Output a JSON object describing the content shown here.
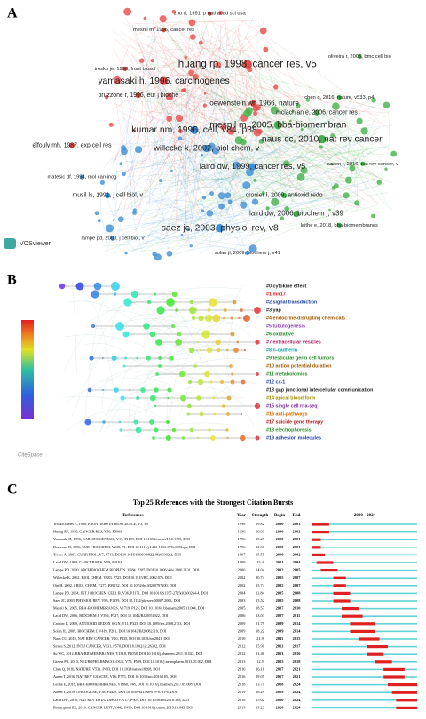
{
  "panel_a": {
    "label": "A",
    "logo": "VOSviewer",
    "nodes": [
      {
        "label": "zhu d, 1991, p natl acad sci usa",
        "color": "#e84a47"
      },
      {
        "label": "mesnil m, 1996, cancer res",
        "color": "#e84a47"
      },
      {
        "label": "huang rp, 1998, cancer res, v5",
        "color": "#e84a47"
      },
      {
        "label": "yamasaki h, 1996, carcinogenes",
        "color": "#e84a47"
      },
      {
        "label": "bruzzone r, 1996, eur j bioche",
        "color": "#e84a47"
      },
      {
        "label": "loewenstein wr, 1966, nature",
        "color": "#e84a47"
      },
      {
        "label": "kumar nm, 1996, cell, v84, p38",
        "color": "#3f8fd6"
      },
      {
        "label": "mesnil m, 2005, bba-biomembran",
        "color": "#43b24a"
      },
      {
        "label": "naus cc, 2010, nat rev cancer",
        "color": "#43b24a"
      },
      {
        "label": "willecke k, 2002, biol chem, v",
        "color": "#3f8fd6"
      },
      {
        "label": "laird dw, 1999, cancer res, v5",
        "color": "#3f8fd6"
      },
      {
        "label": "saez jc, 2003, physiol rev, v8",
        "color": "#3f8fd6"
      },
      {
        "label": "laird dw, 2006, biochem j, v39",
        "color": "#43b24a"
      },
      {
        "label": "elfouly mh, 1987, exp cell res",
        "color": "#e84a47"
      },
      {
        "label": "musil ls, 1991, j cell biol, v",
        "color": "#3f8fd6"
      },
      {
        "label": "lampe pd, 2000, j cell biol, v",
        "color": "#3f8fd6"
      },
      {
        "label": "solan jl, 2009, biochem j, v41",
        "color": "#3f8fd6"
      },
      {
        "label": "cronier l, 2009, antioxid redo",
        "color": "#43b24a"
      },
      {
        "label": "chen q, 2016, nature, v533, p4",
        "color": "#43b24a"
      },
      {
        "label": "oliveira r, 2005, bmc cell bio",
        "color": "#43b24a"
      },
      {
        "label": "mclachlan e, 2006, cancer res",
        "color": "#43b24a"
      },
      {
        "label": "aasen t, 2016, nat rev cancer, v",
        "color": "#43b24a"
      },
      {
        "label": "leithe e, 2018, bba-biomembranes",
        "color": "#43b24a"
      },
      {
        "label": "trosko je, 1998, front biosci",
        "color": "#e84a47"
      },
      {
        "label": "matesic df, 1994, mol carcinog",
        "color": "#3f8fd6"
      }
    ]
  },
  "panel_b": {
    "label": "B",
    "logo": "CiteSpace",
    "clusters": [
      {
        "label": "#0 cytokine effect",
        "color": "#222222"
      },
      {
        "label": "#1 mir17",
        "color": "#d42020"
      },
      {
        "label": "#2 signal transduction",
        "color": "#1f3f9f"
      },
      {
        "label": "#3 yap",
        "color": "#222222"
      },
      {
        "label": "#4 endocrine-disrupting chemicals",
        "color": "#a05a00"
      },
      {
        "label": "#5 tubulogenesis",
        "color": "#8a3fb0"
      },
      {
        "label": "#6 oxidative",
        "color": "#2b8a2b"
      },
      {
        "label": "#7 extracellular vesicles",
        "color": "#b0206a"
      },
      {
        "label": "#8 n-cadherin",
        "color": "#20a0a0"
      },
      {
        "label": "#9 testicular germ cell tumors",
        "color": "#2b8a2b"
      },
      {
        "label": "#10 action potential duration",
        "color": "#a05a00"
      },
      {
        "label": "#11 metabolomics",
        "color": "#2b8a2b"
      },
      {
        "label": "#12 cx-1",
        "color": "#1f3f9f"
      },
      {
        "label": "#13 gap junctional intercellular communication",
        "color": "#222222"
      },
      {
        "label": "#14 apical blood form",
        "color": "#a09000"
      },
      {
        "label": "#15 single cell rna-seq",
        "color": "#7a2aa0"
      },
      {
        "label": "#16 anti-pathways",
        "color": "#d46a00"
      },
      {
        "label": "#17 suicide gene therapy",
        "color": "#b02020"
      },
      {
        "label": "#18 electrophoresis",
        "color": "#2b8a2b"
      },
      {
        "label": "#19 adhesion molecules",
        "color": "#1f3f9f"
      }
    ]
  },
  "panel_c": {
    "label": "C",
    "title": "Top 25 References with the Strongest Citation Bursts",
    "headers": [
      "References",
      "Year",
      "Strength",
      "Begin",
      "End",
      "2000 - 2024"
    ],
    "xlim": [
      2000,
      2024
    ],
    "rows": [
      [
        "Trosko James E, 1998, FRONTIERS IN BIOSCIENCE, V3, P9",
        1998,
        19.82,
        2000,
        2003
      ],
      [
        "Huang RP, 1998, CANCER RES, V58, P5089",
        1998,
        16.83,
        2000,
        2003
      ],
      [
        "Yamasaki H, 1996, CARCINOGENESIS, V17, P1199, DOI 10.1093/carcin/17.6.1199, DOI",
        1996,
        18.27,
        2000,
        2001
      ],
      [
        "Bruzzone R, 1996, EUR J BIOCHEM, V238, P1, DOI 10.1111/j.1432-1033.1996.0001q.x, DOI",
        1996,
        12.56,
        2000,
        2001
      ],
      [
        "Trosse A, 1997, CURR BIOL, V7, P713, DOI 10.1016/S0960-9822(06)00302-2, DOI",
        1997,
        15.55,
        2000,
        2002
      ],
      [
        "Laird DW, 1999, CANCER RES, V59, P4104",
        1999,
        15.4,
        2001,
        2004
      ],
      [
        "Lampe PD, 2000, ARCH BIOCHEM BIOPHYS, V384, P205, DOI 10.1006/abbi.2000.2131, DOI",
        2000,
        14.04,
        2002,
        2005
      ],
      [
        "Willecke K, 2002, BIOL CHEM, V383, P725, DOI 10.1515/BC.2002.076, DOI",
        2002,
        20.74,
        2005,
        2007
      ],
      [
        "Qin H, 2002, J BIOL CHEM, V277, P29132, DOI 10.1074/jbc.M200797200, DOI",
        2002,
        15.74,
        2005,
        2007
      ],
      [
        "Lampe PD, 2004, INT J BIOCHEM CELL B, V36, P1171, DOI 10.1016/S1357-2725(03)00264-4, DOI",
        2004,
        13.84,
        2005,
        2008
      ],
      [
        "Saez JC, 2003, PHYSIOL REV, V83, P1359, DOI 10.1152/physrev.00007.2003, DOI",
        2003,
        15.52,
        2005,
        2008
      ],
      [
        "Mesnil M, 2005, BBA-BIOMEMBRANES, V1719, P125, DOI 10.1016/j.bbamem.2005.11.004, DOI",
        2005,
        18.57,
        2007,
        2010
      ],
      [
        "Laird DW, 2006, BIOCHEM J, V394, P527, DOI 10.1042/BJ20051922, DOI",
        2006,
        13.03,
        2007,
        2011
      ],
      [
        "Cronier L, 2009, ANTIOXID REDOX SIGN, V11, P323, DOI 10.1089/ars.2008.2153, DOI",
        2009,
        21.79,
        2009,
        2014
      ],
      [
        "Solan JL, 2009, BIOCHEM J, V419, P261, DOI 10.1042/BJ20082319, DOI",
        2009,
        18.22,
        2009,
        2014
      ],
      [
        "Naus CC, 2010, NAT REV CANCER, V10, P435, DOI 10.1038/nrc2841, DOI",
        2010,
        21.9,
        2011,
        2015
      ],
      [
        "Sirnes S, 2012, INT J CANCER, V131, P570, DOI 10.1002/ijc.26392, DOI",
        2012,
        15.91,
        2013,
        2017
      ],
      [
        "Su WC, 2012, BBA-BIOMEMBRANES, V1818, P2058, DOI 10.1016/j.bbamem.2011.10.022, DOI",
        2012,
        11.48,
        2013,
        2016
      ],
      [
        "Gielen PR, 2013, NEUROPHARMACOLOGY, V75, P539, DOI 10.1016/j.neuropharm.2013.05.002, DOI",
        2013,
        12.5,
        2015,
        2018
      ],
      [
        "Chen Q, 2016, NATURE, V533, P493, DOI 10.1038/nature18268, DOI",
        2016,
        16.11,
        2017,
        2021
      ],
      [
        "Aasen T, 2016, NAT REV CANCER, V16, P775, DOI 10.1038/nrc.2016.105, DOI",
        2016,
        29.05,
        2017,
        2021
      ],
      [
        "Leithe E, 2018, BBA-BIOMEMBRANES, V1860, P48, DOI 10.1016/j.bbamem.2017.05.008, DOI",
        2018,
        13.71,
        2018,
        2024
      ],
      [
        "Aasen T, 2019, ONCOGENE, V38, P4429, DOI 10.1038/s41388-019-0741-6, DOI",
        2019,
        26.29,
        2019,
        2024
      ],
      [
        "Laird DW, 2018, NAT REV DRUG DISCOV, V17, P905, DOI 10.1038/nrd.2018.138, DOI",
        2018,
        15.02,
        2020,
        2024
      ],
      [
        "Bonacquisti EE, 2019, CANCER LETT, V442, P439, DOI 10.1016/j.canlet.2018.10.043, DOI",
        2019,
        19.23,
        2020,
        2024
      ]
    ]
  }
}
